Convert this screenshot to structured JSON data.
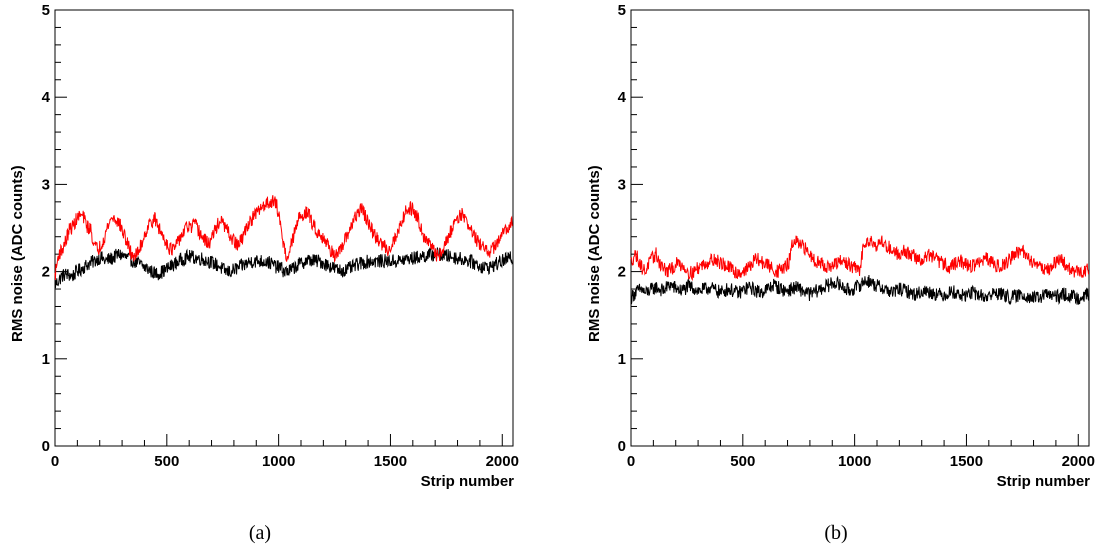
{
  "panels": [
    {
      "caption": "(a)"
    },
    {
      "caption": "(b)"
    }
  ],
  "chart_data": [
    {
      "type": "line",
      "xlabel": "Strip number",
      "ylabel": "RMS noise (ADC counts)",
      "xlim": [
        0,
        2048
      ],
      "ylim": [
        0,
        5
      ],
      "x_ticks": [
        "0",
        "500",
        "1000",
        "1500",
        "2000"
      ],
      "y_ticks": [
        "0",
        "1",
        "2",
        "3",
        "4",
        "5"
      ],
      "x_step": 16,
      "series": [
        {
          "color": "#000000",
          "values": [
            1.85,
            1.9,
            1.95,
            1.97,
            1.96,
            1.95,
            2.0,
            2.02,
            2.05,
            2.08,
            2.1,
            2.12,
            2.15,
            2.16,
            2.12,
            2.14,
            2.15,
            2.18,
            2.2,
            2.18,
            2.16,
            2.14,
            2.12,
            2.1,
            2.08,
            2.05,
            2.03,
            2.0,
            1.98,
            1.98,
            2.0,
            2.02,
            2.05,
            2.08,
            2.1,
            2.13,
            2.15,
            2.17,
            2.17,
            2.16,
            2.15,
            2.15,
            2.13,
            2.12,
            2.1,
            2.08,
            2.06,
            2.02,
            2.0,
            2.0,
            2.02,
            2.04,
            2.06,
            2.08,
            2.1,
            2.12,
            2.12,
            2.12,
            2.12,
            2.12,
            2.1,
            2.08,
            2.05,
            2.05,
            2.0,
            2.0,
            2.02,
            2.05,
            2.08,
            2.1,
            2.12,
            2.13,
            2.13,
            2.12,
            2.12,
            2.1,
            2.08,
            2.06,
            2.04,
            2.02,
            2.01,
            2.02,
            2.03,
            2.05,
            2.07,
            2.09,
            2.1,
            2.11,
            2.12,
            2.12,
            2.12,
            2.12,
            2.12,
            2.12,
            2.12,
            2.12,
            2.12,
            2.13,
            2.14,
            2.15,
            2.15,
            2.16,
            2.17,
            2.18,
            2.18,
            2.19,
            2.2,
            2.2,
            2.19,
            2.18,
            2.18,
            2.17,
            2.16,
            2.15,
            2.14,
            2.13,
            2.12,
            2.1,
            2.08,
            2.06,
            2.05,
            2.05,
            2.06,
            2.08,
            2.1,
            2.12,
            2.14,
            2.15,
            2.16,
            2.15,
            2.14,
            2.13,
            2.11,
            2.09,
            2.07,
            2.05,
            2.03,
            2.02,
            2.03,
            2.05,
            2.07,
            2.09,
            2.11,
            2.12
          ]
        },
        {
          "color": "#ff0000",
          "values": [
            1.95,
            2.2,
            2.25,
            2.35,
            2.48,
            2.52,
            2.6,
            2.65,
            2.62,
            2.52,
            2.48,
            2.3,
            2.25,
            2.32,
            2.42,
            2.55,
            2.62,
            2.6,
            2.55,
            2.45,
            2.35,
            2.23,
            2.18,
            2.2,
            2.3,
            2.42,
            2.52,
            2.58,
            2.6,
            2.5,
            2.42,
            2.35,
            2.27,
            2.25,
            2.3,
            2.4,
            2.45,
            2.52,
            2.5,
            2.55,
            2.48,
            2.4,
            2.35,
            2.32,
            2.4,
            2.5,
            2.58,
            2.55,
            2.48,
            2.4,
            2.35,
            2.3,
            2.35,
            2.45,
            2.55,
            2.6,
            2.65,
            2.7,
            2.75,
            2.78,
            2.8,
            2.82,
            2.75,
            2.55,
            2.28,
            2.15,
            2.3,
            2.45,
            2.6,
            2.65,
            2.68,
            2.65,
            2.55,
            2.48,
            2.42,
            2.4,
            2.32,
            2.25,
            2.2,
            2.18,
            2.25,
            2.35,
            2.45,
            2.55,
            2.62,
            2.7,
            2.72,
            2.6,
            2.52,
            2.43,
            2.38,
            2.32,
            2.3,
            2.25,
            2.3,
            2.38,
            2.48,
            2.58,
            2.7,
            2.73,
            2.72,
            2.65,
            2.55,
            2.42,
            2.35,
            2.3,
            2.22,
            2.18,
            2.22,
            2.3,
            2.4,
            2.5,
            2.6,
            2.65,
            2.65,
            2.58,
            2.5,
            2.42,
            2.35,
            2.3,
            2.25,
            2.22,
            2.25,
            2.3,
            2.35,
            2.42,
            2.48,
            2.55,
            2.6,
            2.62,
            2.62,
            2.6,
            2.58,
            2.55,
            2.5,
            2.47,
            2.45,
            2.48,
            2.52,
            2.55,
            2.58,
            2.62,
            2.65,
            2.68,
            2.65
          ]
        }
      ]
    },
    {
      "type": "line",
      "xlabel": "Strip number",
      "ylabel": "RMS noise (ADC counts)",
      "xlim": [
        0,
        2048
      ],
      "ylim": [
        0,
        5
      ],
      "x_ticks": [
        "0",
        "500",
        "1000",
        "1500",
        "2000"
      ],
      "y_ticks": [
        "0",
        "1",
        "2",
        "3",
        "4",
        "5"
      ],
      "x_step": 16,
      "series": [
        {
          "color": "#000000",
          "values": [
            1.7,
            1.75,
            1.78,
            1.8,
            1.75,
            1.78,
            1.8,
            1.82,
            1.8,
            1.78,
            1.82,
            1.85,
            1.82,
            1.8,
            1.78,
            1.8,
            1.83,
            1.82,
            1.8,
            1.78,
            1.79,
            1.8,
            1.82,
            1.8,
            1.78,
            1.76,
            1.78,
            1.8,
            1.79,
            1.77,
            1.75,
            1.78,
            1.8,
            1.82,
            1.8,
            1.78,
            1.76,
            1.78,
            1.8,
            1.82,
            1.85,
            1.82,
            1.8,
            1.78,
            1.79,
            1.8,
            1.82,
            1.8,
            1.78,
            1.76,
            1.74,
            1.76,
            1.78,
            1.8,
            1.82,
            1.84,
            1.86,
            1.88,
            1.85,
            1.83,
            1.8,
            1.78,
            1.8,
            1.82,
            1.85,
            1.88,
            1.9,
            1.88,
            1.85,
            1.83,
            1.82,
            1.8,
            1.78,
            1.76,
            1.78,
            1.8,
            1.79,
            1.78,
            1.76,
            1.74,
            1.75,
            1.76,
            1.78,
            1.77,
            1.76,
            1.75,
            1.74,
            1.73,
            1.74,
            1.76,
            1.77,
            1.75,
            1.73,
            1.72,
            1.74,
            1.76,
            1.75,
            1.74,
            1.72,
            1.71,
            1.72,
            1.74,
            1.76,
            1.75,
            1.73,
            1.72,
            1.7,
            1.71,
            1.72,
            1.74,
            1.73,
            1.72,
            1.7,
            1.69,
            1.7,
            1.72,
            1.74,
            1.73,
            1.72,
            1.71,
            1.72,
            1.74,
            1.73,
            1.72,
            1.71,
            1.7,
            1.72,
            1.74,
            1.73,
            1.72,
            1.7,
            1.69,
            1.7,
            1.72,
            1.73,
            1.72,
            1.71,
            1.72,
            1.74,
            1.75,
            1.74,
            1.73
          ]
        },
        {
          "color": "#ff0000",
          "values": [
            2.1,
            2.2,
            2.15,
            2.05,
            2.0,
            2.1,
            2.15,
            2.2,
            2.1,
            2.05,
            2.0,
            2.02,
            2.05,
            2.1,
            2.08,
            2.05,
            2.0,
            1.98,
            2.02,
            2.05,
            2.08,
            2.1,
            2.12,
            2.15,
            2.12,
            2.1,
            2.08,
            2.05,
            2.03,
            2.0,
            1.98,
            2.0,
            2.02,
            2.05,
            2.1,
            2.15,
            2.12,
            2.1,
            2.08,
            2.05,
            2.02,
            2.0,
            2.03,
            2.05,
            2.08,
            2.3,
            2.35,
            2.3,
            2.28,
            2.25,
            2.2,
            2.15,
            2.12,
            2.1,
            2.08,
            2.05,
            2.05,
            2.08,
            2.1,
            2.12,
            2.1,
            2.08,
            2.05,
            2.03,
            2.02,
            2.3,
            2.38,
            2.35,
            2.32,
            2.3,
            2.35,
            2.3,
            2.28,
            2.25,
            2.22,
            2.2,
            2.25,
            2.22,
            2.2,
            2.18,
            2.15,
            2.12,
            2.15,
            2.2,
            2.18,
            2.15,
            2.12,
            2.1,
            2.08,
            2.05,
            2.08,
            2.1,
            2.12,
            2.1,
            2.08,
            2.06,
            2.08,
            2.1,
            2.12,
            2.15,
            2.12,
            2.1,
            2.08,
            2.06,
            2.08,
            2.1,
            2.15,
            2.2,
            2.22,
            2.25,
            2.2,
            2.15,
            2.12,
            2.1,
            2.08,
            2.05,
            2.03,
            2.02,
            2.08,
            2.12,
            2.15,
            2.1,
            2.05,
            2.02,
            2.0,
            1.98,
            2.0,
            2.02,
            2.05,
            2.03,
            2.0,
            1.98,
            2.0,
            2.02,
            2.05,
            2.0,
            1.98,
            1.97,
            2.0,
            2.02,
            2.04,
            2.02,
            2.0,
            1.98
          ]
        }
      ]
    }
  ]
}
